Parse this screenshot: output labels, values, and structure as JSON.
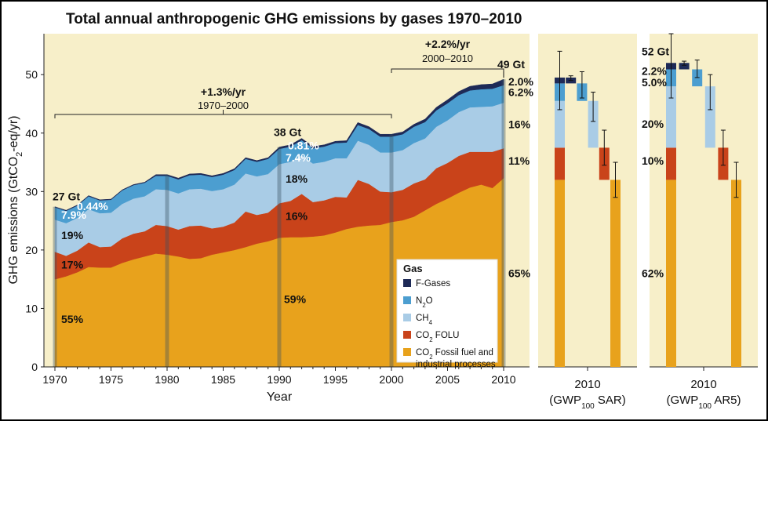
{
  "chart_data": {
    "type": "area",
    "title": "Total annual anthropogenic GHG emissions by gases 1970–2010",
    "xlabel": "Year",
    "ylabel": "GHG emissions (GtCO2-eq/yr)",
    "ylim": [
      0,
      57
    ],
    "yticks": [
      0,
      10,
      20,
      30,
      40,
      50
    ],
    "xticks": [
      1970,
      1975,
      1980,
      1985,
      1990,
      1995,
      2000,
      2005,
      2010
    ],
    "x": [
      1970,
      1971,
      1972,
      1973,
      1974,
      1975,
      1976,
      1977,
      1978,
      1979,
      1980,
      1981,
      1982,
      1983,
      1984,
      1985,
      1986,
      1987,
      1988,
      1989,
      1990,
      1991,
      1992,
      1993,
      1994,
      1995,
      1996,
      1997,
      1998,
      1999,
      2000,
      2001,
      2002,
      2003,
      2004,
      2005,
      2006,
      2007,
      2008,
      2009,
      2010
    ],
    "series": [
      {
        "name": "CO2 Fossil fuel and industrial processes",
        "color": "#E8A21C",
        "values": [
          15.0,
          15.5,
          16.2,
          17.1,
          17.0,
          17.0,
          17.8,
          18.4,
          18.9,
          19.4,
          19.2,
          18.9,
          18.5,
          18.6,
          19.2,
          19.6,
          20.0,
          20.5,
          21.1,
          21.5,
          22.1,
          22.2,
          22.2,
          22.3,
          22.5,
          23.0,
          23.6,
          24.0,
          24.2,
          24.3,
          24.8,
          25.1,
          25.7,
          26.8,
          27.9,
          28.8,
          29.8,
          30.7,
          31.2,
          30.6,
          32.3
        ]
      },
      {
        "name": "CO2 FOLU",
        "color": "#C9431A",
        "values": [
          4.7,
          3.5,
          3.7,
          4.2,
          3.5,
          3.6,
          4.2,
          4.4,
          4.3,
          4.9,
          4.9,
          4.6,
          5.6,
          5.6,
          4.5,
          4.4,
          4.7,
          6.1,
          4.9,
          4.9,
          5.9,
          6.2,
          7.4,
          5.9,
          6.0,
          6.1,
          5.4,
          8.0,
          7.1,
          5.7,
          5.1,
          5.2,
          5.7,
          5.3,
          6.1,
          6.1,
          6.3,
          6.1,
          5.6,
          6.2,
          5.1
        ]
      },
      {
        "name": "CH4",
        "color": "#A9CCE6",
        "values": [
          5.5,
          5.6,
          5.6,
          5.7,
          5.8,
          5.8,
          5.9,
          6.0,
          6.0,
          6.1,
          6.2,
          6.2,
          6.3,
          6.3,
          6.4,
          6.4,
          6.5,
          6.5,
          6.6,
          6.6,
          6.7,
          6.7,
          6.6,
          6.6,
          6.6,
          6.6,
          6.7,
          6.7,
          6.7,
          6.7,
          6.8,
          6.8,
          6.9,
          7.0,
          7.1,
          7.3,
          7.5,
          7.6,
          7.7,
          7.8,
          7.8
        ]
      },
      {
        "name": "N2O",
        "color": "#4C9ED0",
        "values": [
          2.1,
          2.1,
          2.1,
          2.2,
          2.2,
          2.2,
          2.3,
          2.3,
          2.3,
          2.3,
          2.4,
          2.4,
          2.4,
          2.4,
          2.4,
          2.5,
          2.5,
          2.5,
          2.5,
          2.6,
          2.6,
          2.6,
          2.6,
          2.6,
          2.6,
          2.6,
          2.7,
          2.7,
          2.7,
          2.7,
          2.7,
          2.7,
          2.8,
          2.8,
          2.8,
          2.9,
          2.9,
          2.9,
          3.0,
          3.0,
          3.0
        ]
      },
      {
        "name": "F-Gases",
        "color": "#1E2A57",
        "values": [
          0.1,
          0.1,
          0.1,
          0.1,
          0.1,
          0.1,
          0.1,
          0.1,
          0.1,
          0.2,
          0.2,
          0.2,
          0.2,
          0.2,
          0.2,
          0.2,
          0.2,
          0.2,
          0.2,
          0.2,
          0.3,
          0.3,
          0.3,
          0.3,
          0.3,
          0.3,
          0.3,
          0.4,
          0.4,
          0.4,
          0.4,
          0.4,
          0.4,
          0.5,
          0.5,
          0.6,
          0.6,
          0.7,
          0.8,
          0.8,
          1.0
        ]
      }
    ],
    "highlight_years": [
      1970,
      1980,
      1990,
      2000,
      2010
    ],
    "legend": {
      "title": "Gas",
      "entries": [
        {
          "label": "F-Gases",
          "color": "#1E2A57"
        },
        {
          "label": "N",
          "sub": "2",
          "suffix": "O",
          "color": "#4C9ED0"
        },
        {
          "label": "CH",
          "sub": "4",
          "suffix": "",
          "color": "#A9CCE6"
        },
        {
          "label": "CO",
          "sub": "2",
          "suffix": " FOLU",
          "color": "#C9431A"
        },
        {
          "label": "CO",
          "sub": "2",
          "suffix": " Fossil fuel and",
          "line2": "industrial processes",
          "color": "#E8A21C"
        }
      ],
      "placement": "bottom-right"
    },
    "totals": {
      "y1970": "27 Gt",
      "y1990": "38 Gt",
      "y2010": "49 Gt"
    },
    "annotations": {
      "rate1": "+1.3%/yr",
      "period1": "1970–2000",
      "rate2": "+2.2%/yr",
      "period2": "2000–2010",
      "pct1970": {
        "fgas": "0.44%",
        "n2o": "7.9%",
        "ch4": "19%",
        "folu": "17%",
        "fossil": "55%"
      },
      "pct1990": {
        "fgas": "0.81%",
        "n2o": "7.4%",
        "ch4": "18%",
        "folu": "16%",
        "fossil": "59%"
      },
      "pct2010": {
        "fgas": "2.0%",
        "n2o": "6.2%",
        "ch4": "16%",
        "folu": "11%",
        "fossil": "65%"
      }
    },
    "panels": [
      {
        "tick": "2010",
        "gwp": "GWP",
        "gwp_sub": "100",
        "gwp_suffix": " SAR",
        "total": "",
        "fgas_pct": "",
        "n2o_pct": "",
        "ch4_pct": "",
        "folu_pct": "",
        "fossil_pct": "",
        "stack": {
          "fossil": 32.0,
          "folu": 37.5,
          "ch4": 45.5,
          "n2o": 48.5,
          "fgas": 49.5
        },
        "totals_err": [
          44,
          54
        ],
        "bars": [
          {
            "layer": "fgas",
            "bottom": 48.5,
            "top": 49.5,
            "err": [
              49.0,
              49.8
            ]
          },
          {
            "layer": "n2o",
            "bottom": 45.5,
            "top": 48.5,
            "err": [
              46.0,
              50.5
            ]
          },
          {
            "layer": "ch4",
            "bottom": 37.5,
            "top": 45.5,
            "err": [
              42.0,
              47.0
            ]
          },
          {
            "layer": "folu",
            "bottom": 32.0,
            "top": 37.5,
            "err": [
              34.5,
              40.5
            ]
          },
          {
            "layer": "fossil",
            "bottom": 0,
            "top": 32.0,
            "err": [
              29.0,
              35.0
            ]
          }
        ]
      },
      {
        "tick": "2010",
        "gwp": "GWP",
        "gwp_sub": "100",
        "gwp_suffix": " AR5",
        "total": "52 Gt",
        "fgas_pct": "2.2%",
        "n2o_pct": "5.0%",
        "ch4_pct": "20%",
        "folu_pct": "10%",
        "fossil_pct": "62%",
        "stack": {
          "fossil": 32.0,
          "folu": 37.5,
          "ch4": 48.0,
          "n2o": 50.9,
          "fgas": 52.0
        },
        "totals_err": [
          46,
          57
        ],
        "bars": [
          {
            "layer": "fgas",
            "bottom": 50.9,
            "top": 52.0,
            "err": [
              51.6,
              52.3
            ]
          },
          {
            "layer": "n2o",
            "bottom": 48.0,
            "top": 50.9,
            "err": [
              49.5,
              52.5
            ]
          },
          {
            "layer": "ch4",
            "bottom": 37.5,
            "top": 48.0,
            "err": [
              44.0,
              50.0
            ]
          },
          {
            "layer": "folu",
            "bottom": 32.0,
            "top": 37.5,
            "err": [
              34.5,
              40.5
            ]
          },
          {
            "layer": "fossil",
            "bottom": 0,
            "top": 32.0,
            "err": [
              29.0,
              35.0
            ]
          }
        ]
      }
    ]
  }
}
